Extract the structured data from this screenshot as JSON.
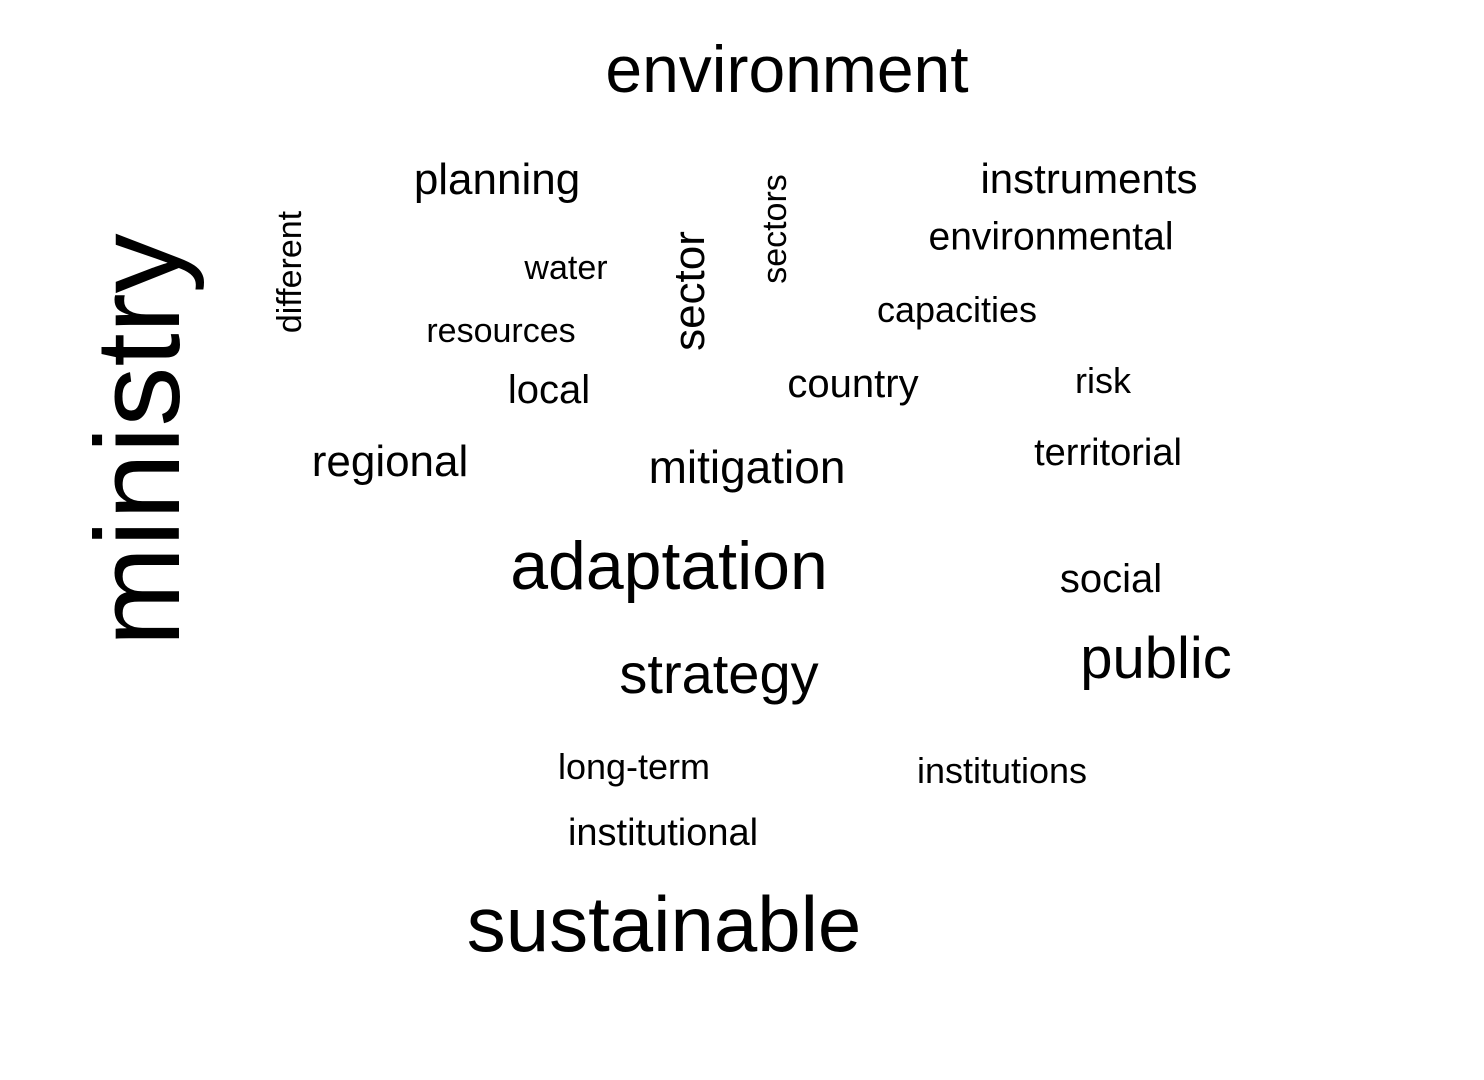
{
  "words": {
    "environment": "environment",
    "planning": "planning",
    "instruments": "instruments",
    "environmental": "environmental",
    "different": "different",
    "water": "water",
    "sector": "sector",
    "sectors": "sectors",
    "resources": "resources",
    "capacities": "capacities",
    "local": "local",
    "country": "country",
    "risk": "risk",
    "ministry": "ministry",
    "regional": "regional",
    "mitigation": "mitigation",
    "territorial": "territorial",
    "adaptation": "adaptation",
    "social": "social",
    "strategy": "strategy",
    "public": "public",
    "long_term": "long-term",
    "institutions": "institutions",
    "institutional": "institutional",
    "sustainable": "sustainable"
  },
  "colors": {
    "text": "#000000",
    "background": "#ffffff"
  }
}
